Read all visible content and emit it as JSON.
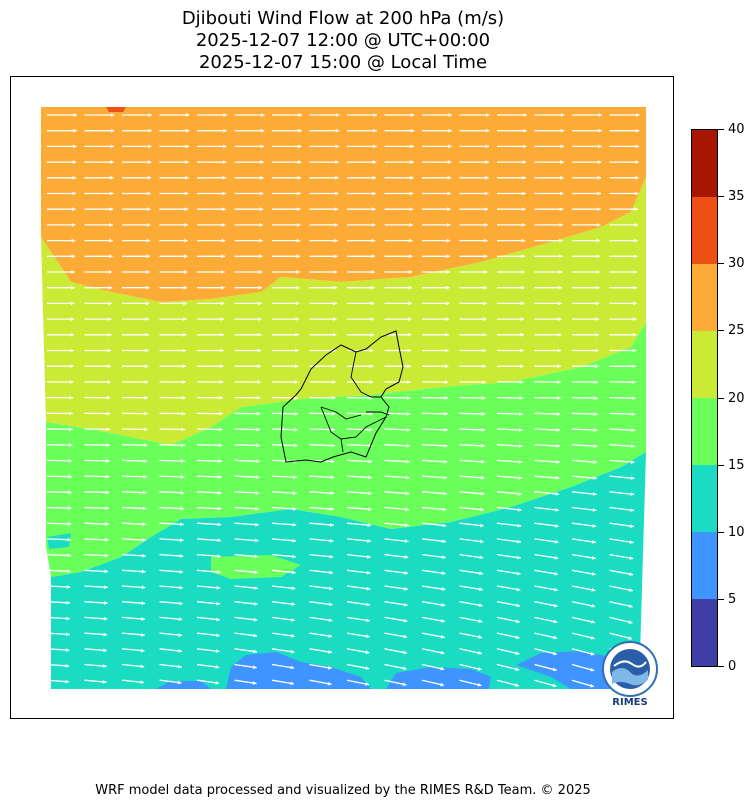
{
  "title": {
    "line1": "Djibouti Wind Flow at 200 hPa (m/s)",
    "line2": "2025-12-07 12:00 @ UTC+00:00",
    "line3": "2025-12-07 15:00 @ Local Time"
  },
  "colorbar": {
    "levels": [
      0,
      5,
      10,
      15,
      20,
      25,
      30,
      35,
      40
    ],
    "colors": [
      "#3f3fa6",
      "#3f94ff",
      "#1adcc3",
      "#6bff5c",
      "#cbea35",
      "#fcab37",
      "#ed5012",
      "#a81500"
    ],
    "tick_labels": [
      "0",
      "5",
      "10",
      "15",
      "20",
      "25",
      "30",
      "35",
      "40"
    ]
  },
  "map": {
    "region": "Djibouti",
    "arrow_color": "#ffffff",
    "border_color": "#000000"
  },
  "logo": {
    "text": "RIMES"
  },
  "footer": "WRF model data processed and visualized by the RIMES R&D Team. © 2025"
}
